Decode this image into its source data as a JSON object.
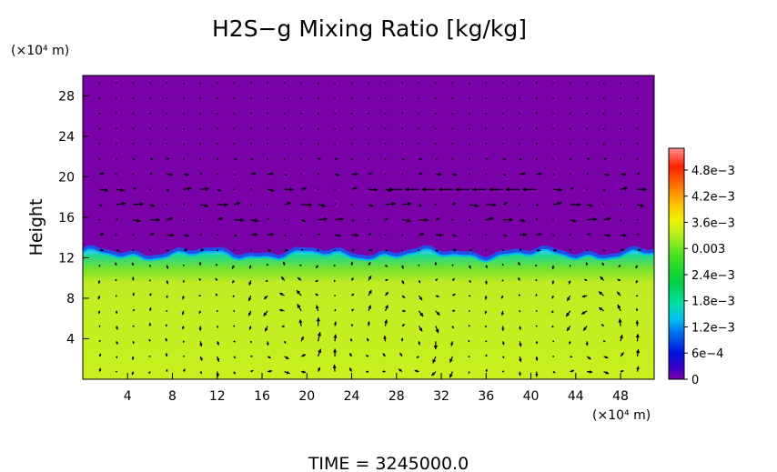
{
  "chart_data": {
    "type": "heatmap",
    "title": "H2S−g Mixing Ratio [kg/kg]",
    "ylabel": "Height",
    "x_unit": "(×10⁴ m)",
    "y_unit": "(×10⁴ m)",
    "footer": "TIME  =  3245000.0",
    "xlim": [
      0,
      51
    ],
    "ylim": [
      0,
      30
    ],
    "x_ticks": [
      4,
      8,
      12,
      16,
      20,
      24,
      28,
      32,
      36,
      40,
      44,
      48
    ],
    "y_ticks": [
      4,
      8,
      12,
      16,
      20,
      24,
      28
    ],
    "colorbar": {
      "min": 0,
      "max": 0.0053,
      "tick_values": [
        0,
        0.0006,
        0.0012,
        0.0018,
        0.0024,
        0.003,
        0.0036,
        0.0042,
        0.0048
      ],
      "tick_labels": [
        "0",
        "6e−4",
        "1.2e−3",
        "1.8e−3",
        "2.4e−3",
        "0.003",
        "3.6e−3",
        "4.2e−3",
        "4.8e−3"
      ]
    },
    "field": {
      "lower_value": 0.0035,
      "upper_value": 0.0,
      "interface_height": 12.5,
      "gradient_bottom_height": 9.5,
      "interface_waviness": 0.35
    },
    "vectors": {
      "x_spacing": 1.5,
      "y_spacing": 1.5,
      "vortex_centers": [
        [
          17.5,
          4.5
        ],
        [
          28.5,
          4
        ],
        [
          45.5,
          4
        ]
      ],
      "jet": {
        "height": 19,
        "x_from": 28,
        "x_to": 41
      }
    }
  }
}
